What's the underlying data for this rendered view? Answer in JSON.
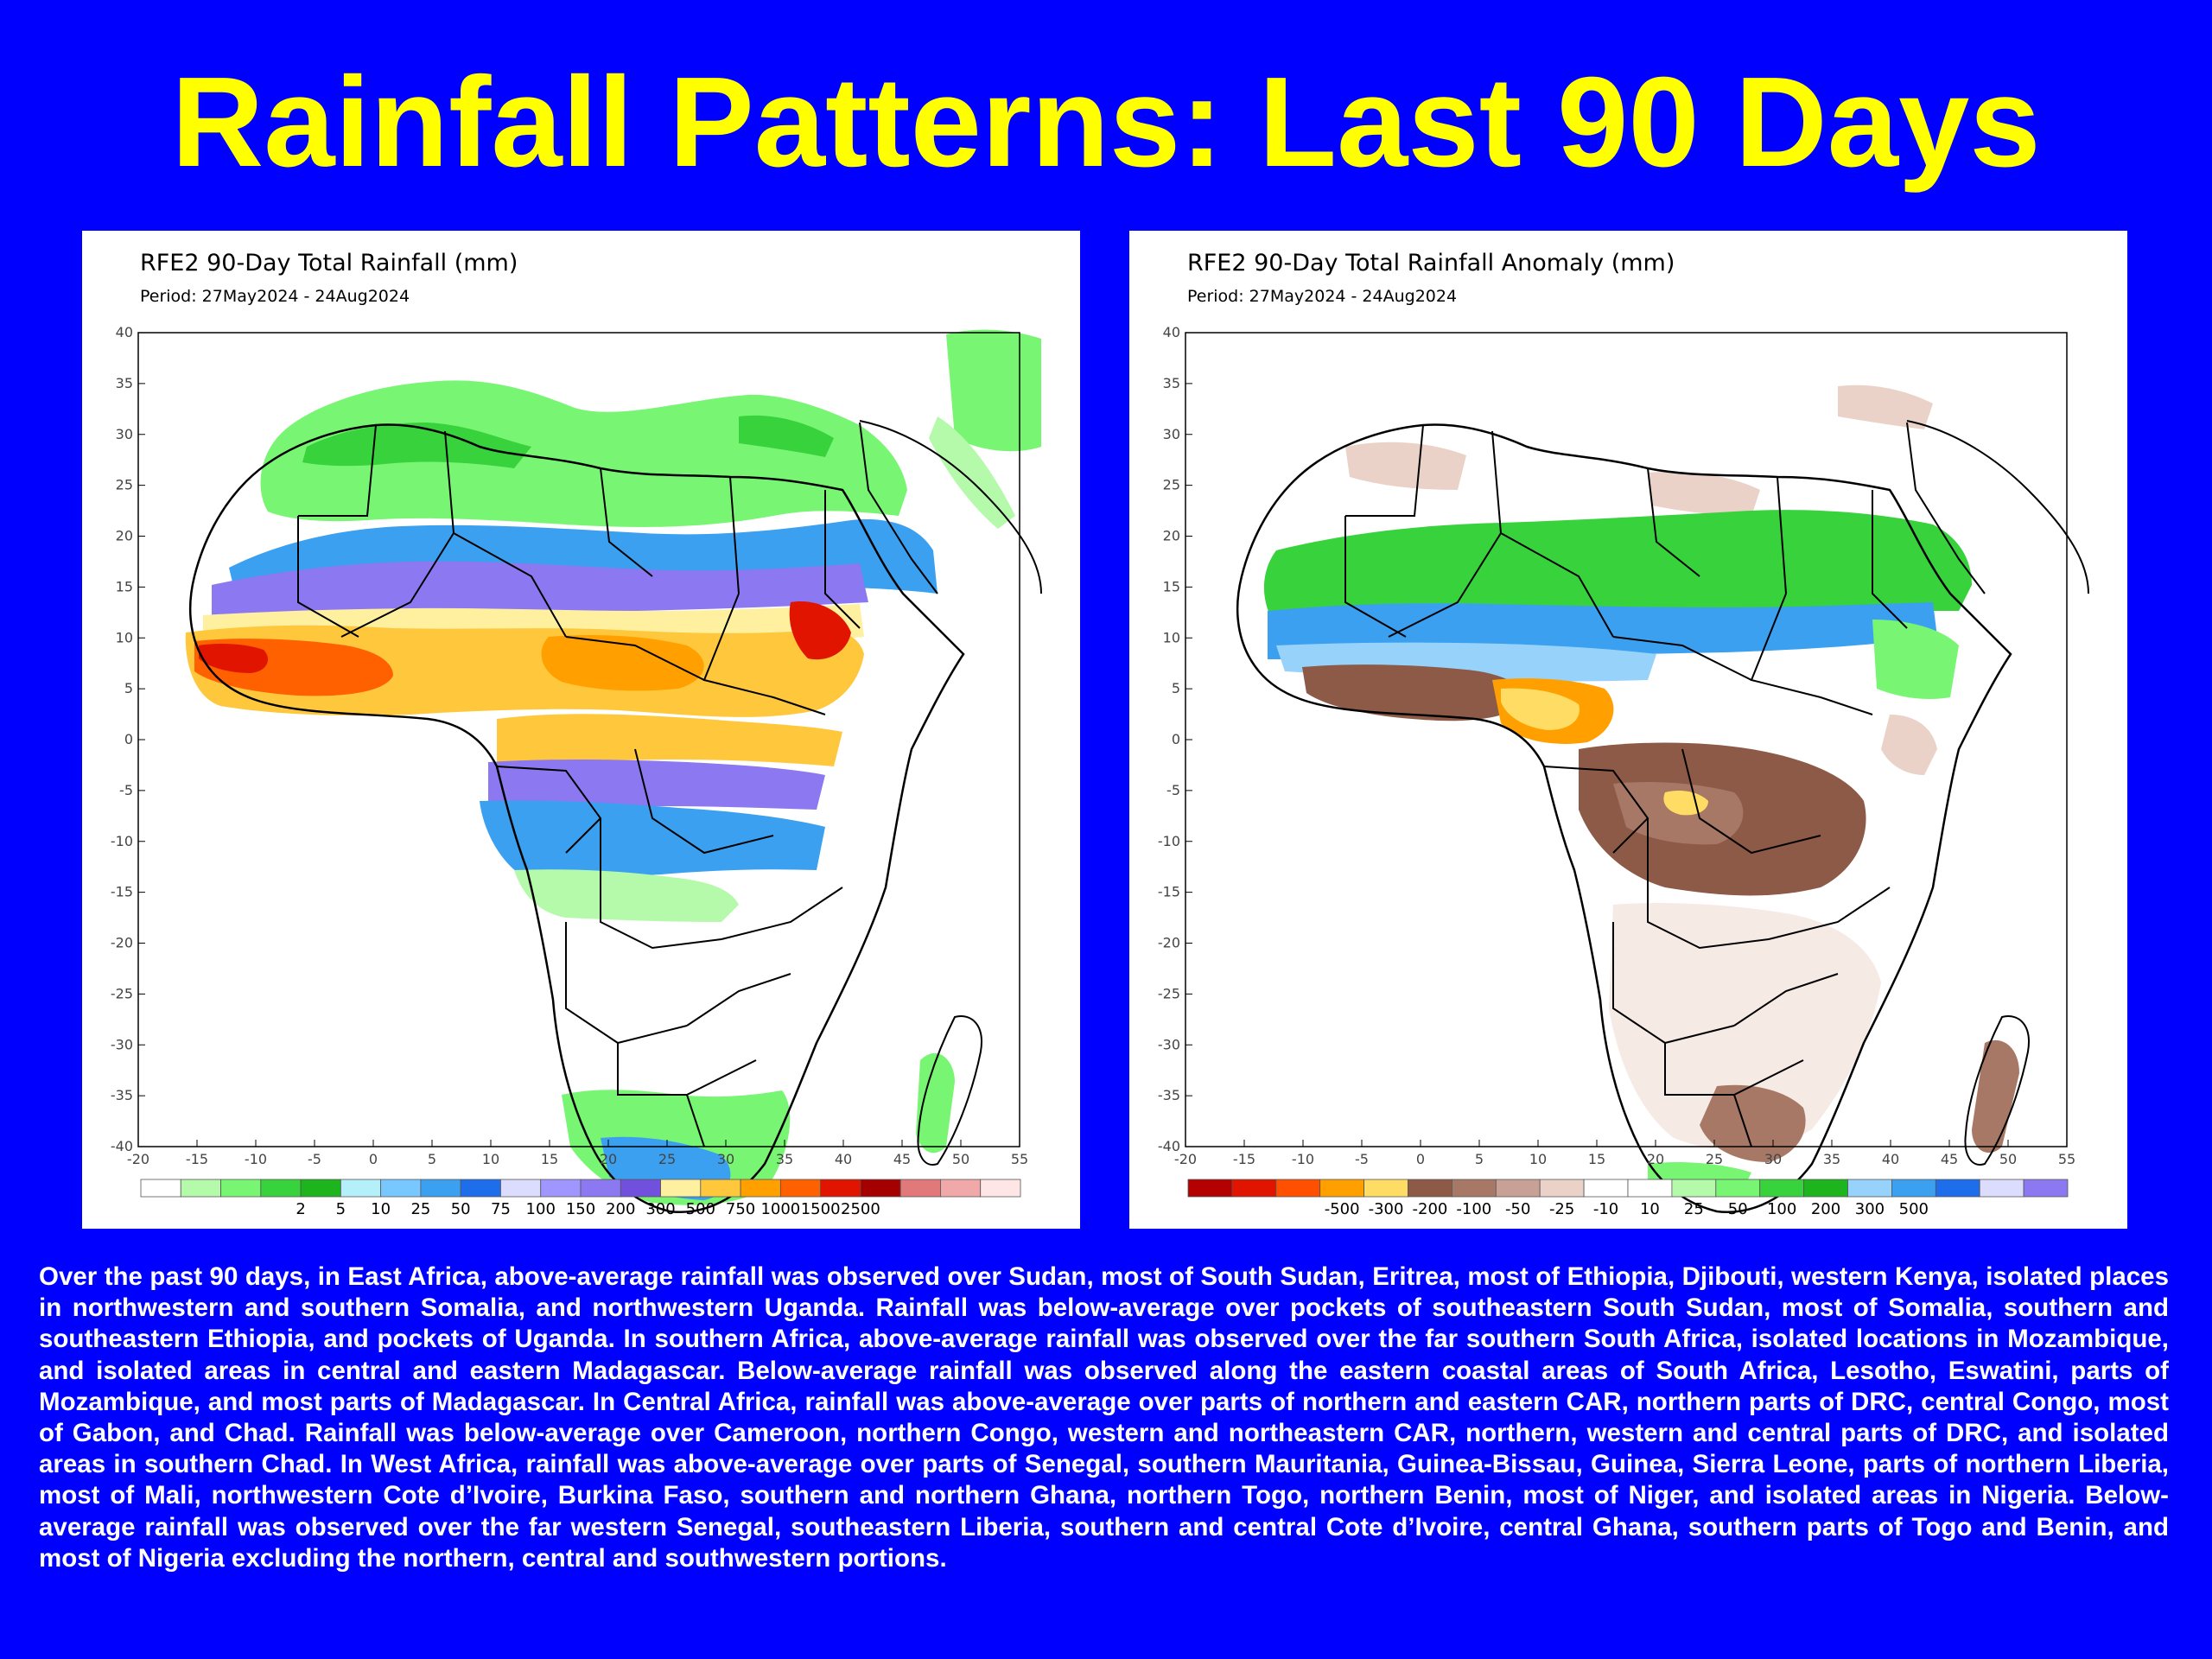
{
  "slide": {
    "title": "Rainfall Patterns: Last 90 Days",
    "background_color": "#0000ff",
    "title_color": "#ffff00"
  },
  "maps": [
    {
      "title": "RFE2 90-Day Total Rainfall (mm)",
      "period": "Period: 27May2024 - 24Aug2024",
      "lon_ticks": [
        "-20",
        "-15",
        "-10",
        "-5",
        "0",
        "5",
        "10",
        "15",
        "20",
        "25",
        "30",
        "35",
        "40",
        "45",
        "50",
        "55"
      ],
      "lat_ticks": [
        "40",
        "35",
        "30",
        "25",
        "20",
        "15",
        "10",
        "5",
        "0",
        "-5",
        "-10",
        "-15",
        "-20",
        "-25",
        "-30",
        "-35",
        "-40"
      ],
      "colorbar": {
        "colors": [
          "#ffffff",
          "#b4faaa",
          "#78f573",
          "#37d23c",
          "#1eb41e",
          "#b4f0fa",
          "#78c8ff",
          "#3ca0f0",
          "#1e6eeb",
          "#dcdcff",
          "#a096ff",
          "#8c78f0",
          "#7050dc",
          "#fff0a0",
          "#ffc83c",
          "#ffa000",
          "#ff6000",
          "#e11400",
          "#a50000",
          "#e1787a",
          "#f0a8a8",
          "#ffe6e6"
        ],
        "labels": [
          "2",
          "5",
          "10",
          "25",
          "50",
          "75",
          "100",
          "150",
          "200",
          "300",
          "500",
          "750",
          "1000",
          "1500",
          "2500"
        ]
      }
    },
    {
      "title": "RFE2 90-Day Total Rainfall Anomaly (mm)",
      "period": "Period: 27May2024 - 24Aug2024",
      "lon_ticks": [
        "-20",
        "-15",
        "-10",
        "-5",
        "0",
        "5",
        "10",
        "15",
        "20",
        "25",
        "30",
        "35",
        "40",
        "45",
        "50",
        "55"
      ],
      "lat_ticks": [
        "40",
        "35",
        "30",
        "25",
        "20",
        "15",
        "10",
        "5",
        "0",
        "-5",
        "-10",
        "-15",
        "-20",
        "-25",
        "-30",
        "-35",
        "-40"
      ],
      "colorbar": {
        "colors": [
          "#b40000",
          "#e11400",
          "#ff5000",
          "#ffa000",
          "#ffdc64",
          "#8c5a46",
          "#a87866",
          "#c8a096",
          "#ebd2c8",
          "#ffffff",
          "#ffffff",
          "#b4faaa",
          "#78f573",
          "#37d23c",
          "#1eb41e",
          "#96d2fa",
          "#3ca0f0",
          "#1e6eeb",
          "#dcdcff",
          "#8c78f0"
        ],
        "labels": [
          "-500",
          "-300",
          "-200",
          "-100",
          "-50",
          "-25",
          "-10",
          "10",
          "25",
          "50",
          "100",
          "200",
          "300",
          "500"
        ]
      }
    }
  ],
  "summary": "Over the past 90 days, in East Africa, above-average rainfall was observed over Sudan, most of South Sudan, Eritrea, most of Ethiopia, Djibouti, western Kenya, isolated places in northwestern and southern Somalia, and northwestern Uganda. Rainfall was below-average over pockets of southeastern South Sudan, most of Somalia, southern and southeastern Ethiopia, and pockets of Uganda. In southern Africa, above-average rainfall was observed over the far southern South Africa, isolated locations in Mozambique, and isolated areas in central and eastern Madagascar. Below-average rainfall was observed along the eastern coastal areas of South Africa, Lesotho, Eswatini, parts of Mozambique, and most parts of Madagascar. In Central Africa, rainfall was above-average over parts of northern and eastern CAR, northern parts of DRC, central Congo, most of Gabon, and Chad. Rainfall was below-average over Cameroon, northern Congo, western and northeastern CAR, northern, western and central parts of DRC, and isolated areas in southern Chad. In West Africa, rainfall was above-average over parts of Senegal, southern Mauritania, Guinea-Bissau, Guinea, Sierra Leone, parts of northern Liberia, most of Mali, northwestern Cote d’Ivoire, Burkina Faso, southern and northern Ghana, northern Togo, northern Benin, most of Niger, and isolated areas in Nigeria. Below-average rainfall was observed over the far western Senegal, southeastern Liberia, southern and central Cote d’Ivoire, central Ghana, southern parts of Togo and Benin, and most of Nigeria excluding the northern, central and southwestern portions."
}
